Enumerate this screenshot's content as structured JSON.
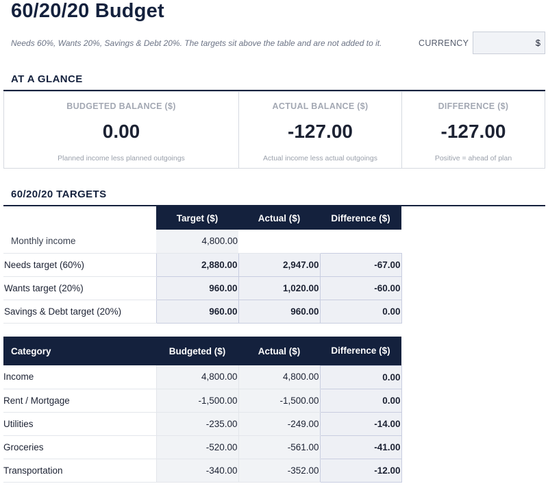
{
  "header": {
    "title": "60/20/20 Budget",
    "subtitle": "Needs 60%, Wants 20%, Savings & Debt 20%. The targets sit above the table and are not added to it.",
    "currency_label": "CURRENCY",
    "currency_value": "$"
  },
  "glance": {
    "section_title": "AT A GLANCE",
    "cards": [
      {
        "label": "BUDGETED BALANCE ($)",
        "value": "0.00",
        "note": "Planned income less planned outgoings"
      },
      {
        "label": "ACTUAL BALANCE ($)",
        "value": "-127.00",
        "note": "Actual income less actual outgoings"
      },
      {
        "label": "DIFFERENCE ($)",
        "value": "-127.00",
        "note": "Positive = ahead of plan"
      }
    ]
  },
  "targets": {
    "section_title": "60/20/20 TARGETS",
    "headers": [
      "Target ($)",
      "Actual ($)",
      "Difference ($)"
    ],
    "income_label": "Monthly income",
    "income_value": "4,800.00",
    "rows": [
      {
        "label": "Needs target (60%)",
        "target": "2,880.00",
        "actual": "2,947.00",
        "difference": "-67.00"
      },
      {
        "label": "Wants target (20%)",
        "target": "960.00",
        "actual": "1,020.00",
        "difference": "-60.00"
      },
      {
        "label": "Savings & Debt target (20%)",
        "target": "960.00",
        "actual": "960.00",
        "difference": "0.00"
      }
    ]
  },
  "categories": {
    "headers": [
      "Category",
      "Budgeted ($)",
      "Actual ($)",
      "Difference ($)"
    ],
    "rows": [
      {
        "category": "Income",
        "budgeted": "4,800.00",
        "actual": "4,800.00",
        "difference": "0.00"
      },
      {
        "category": "Rent / Mortgage",
        "budgeted": "-1,500.00",
        "actual": "-1,500.00",
        "difference": "0.00"
      },
      {
        "category": "Utilities",
        "budgeted": "-235.00",
        "actual": "-249.00",
        "difference": "-14.00"
      },
      {
        "category": "Groceries",
        "budgeted": "-520.00",
        "actual": "-561.00",
        "difference": "-41.00"
      },
      {
        "category": "Transportation",
        "budgeted": "-340.00",
        "actual": "-352.00",
        "difference": "-12.00"
      }
    ]
  }
}
